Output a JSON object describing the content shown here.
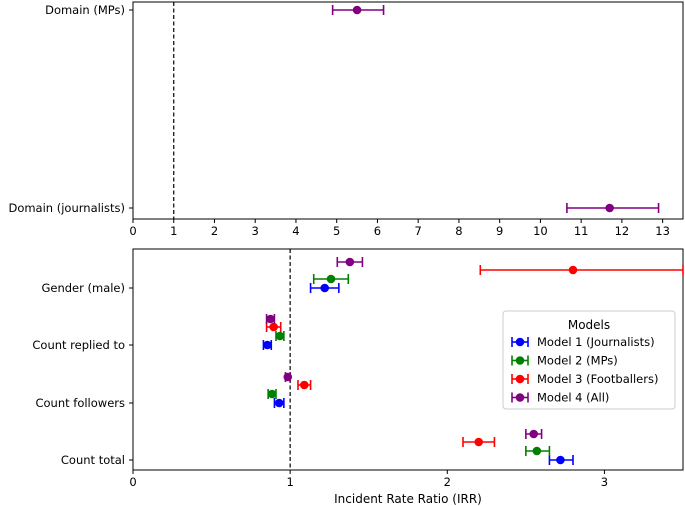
{
  "chart_data": [
    {
      "type": "errorbar",
      "orientation": "horizontal",
      "xlim": [
        0,
        13.5
      ],
      "xticks": [
        0,
        1,
        2,
        3,
        4,
        5,
        6,
        7,
        8,
        9,
        10,
        11,
        12,
        13
      ],
      "reference_line": 1,
      "categories": [
        "Domain (MPs)",
        "Domain (journalists)"
      ],
      "series": [
        {
          "color": "#800080",
          "points": [
            {
              "category": "Domain (MPs)",
              "x": 5.5,
              "lo": 4.9,
              "hi": 6.15
            },
            {
              "category": "Domain (journalists)",
              "x": 11.7,
              "lo": 10.65,
              "hi": 12.9
            }
          ]
        }
      ],
      "xlabel": "",
      "ylabel": "",
      "grid": false
    },
    {
      "type": "errorbar",
      "orientation": "horizontal",
      "xlim": [
        0,
        3.5
      ],
      "xticks": [
        0,
        1,
        2,
        3
      ],
      "reference_line": 1,
      "categories": [
        "Gender (male)",
        "Count replied to",
        "Count followers",
        "Count total"
      ],
      "xlabel": "Incident Rate Ratio (IRR)",
      "ylabel": "",
      "grid": false,
      "legend": {
        "title": "Models",
        "placement": "center-right"
      },
      "series": [
        {
          "name": "Model 1 (Journalists)",
          "color": "#0000ff",
          "points": [
            {
              "category": "Gender (male)",
              "x": 1.22,
              "lo": 1.13,
              "hi": 1.31
            },
            {
              "category": "Count replied to",
              "x": 0.855,
              "lo": 0.83,
              "hi": 0.88
            },
            {
              "category": "Count followers",
              "x": 0.93,
              "lo": 0.9,
              "hi": 0.96
            },
            {
              "category": "Count total",
              "x": 2.72,
              "lo": 2.65,
              "hi": 2.8
            }
          ]
        },
        {
          "name": "Model 2 (MPs)",
          "color": "#008000",
          "points": [
            {
              "category": "Gender (male)",
              "x": 1.26,
              "lo": 1.15,
              "hi": 1.37
            },
            {
              "category": "Count replied to",
              "x": 0.935,
              "lo": 0.91,
              "hi": 0.96
            },
            {
              "category": "Count followers",
              "x": 0.885,
              "lo": 0.86,
              "hi": 0.91
            },
            {
              "category": "Count total",
              "x": 2.57,
              "lo": 2.5,
              "hi": 2.65
            }
          ]
        },
        {
          "name": "Model 3 (Footballers)",
          "color": "#ff0000",
          "points": [
            {
              "category": "Gender (male)",
              "x": 2.8,
              "lo": 2.21,
              "hi": 3.5
            },
            {
              "category": "Count replied to",
              "x": 0.895,
              "lo": 0.85,
              "hi": 0.94
            },
            {
              "category": "Count followers",
              "x": 1.09,
              "lo": 1.05,
              "hi": 1.13
            },
            {
              "category": "Count total",
              "x": 2.2,
              "lo": 2.1,
              "hi": 2.3
            }
          ]
        },
        {
          "name": "Model 4 (All)",
          "color": "#800080",
          "points": [
            {
              "category": "Gender (male)",
              "x": 1.38,
              "lo": 1.3,
              "hi": 1.46
            },
            {
              "category": "Count replied to",
              "x": 0.875,
              "lo": 0.85,
              "hi": 0.9
            },
            {
              "category": "Count followers",
              "x": 0.985,
              "lo": 0.97,
              "hi": 1.0
            },
            {
              "category": "Count total",
              "x": 2.55,
              "lo": 2.5,
              "hi": 2.6
            }
          ]
        }
      ]
    }
  ]
}
